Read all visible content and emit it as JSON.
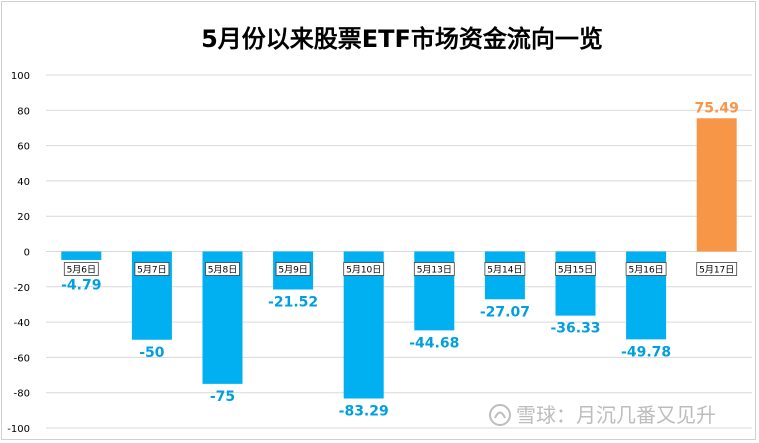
{
  "chart_data": {
    "type": "bar",
    "title": "5月份以来股票ETF市场资金流向一览",
    "categories": [
      "5月6日",
      "5月7日",
      "5月8日",
      "5月9日",
      "5月10日",
      "5月13日",
      "5月14日",
      "5月15日",
      "5月16日",
      "5月17日"
    ],
    "values": [
      -4.79,
      -50,
      -75,
      -21.52,
      -83.29,
      -44.68,
      -27.07,
      -36.33,
      -49.78,
      75.49
    ],
    "value_labels": [
      "-4.79",
      "-50",
      "-75",
      "-21.52",
      "-83.29",
      "-44.68",
      "-27.07",
      "-36.33",
      "-49.78",
      "75.49"
    ],
    "ylim": [
      -100,
      100
    ],
    "yticks": [
      100,
      80,
      60,
      40,
      20,
      0,
      -20,
      -40,
      -60,
      -80,
      -100
    ],
    "grid": true,
    "legend": "none",
    "xlabel": "",
    "ylabel": "",
    "colors": {
      "negative": "#00b0f0",
      "positive": "#f79646",
      "label_negative": "#00a0e0",
      "label_positive": "#f79646"
    }
  },
  "watermark": "雪球：月沉几番又见升"
}
